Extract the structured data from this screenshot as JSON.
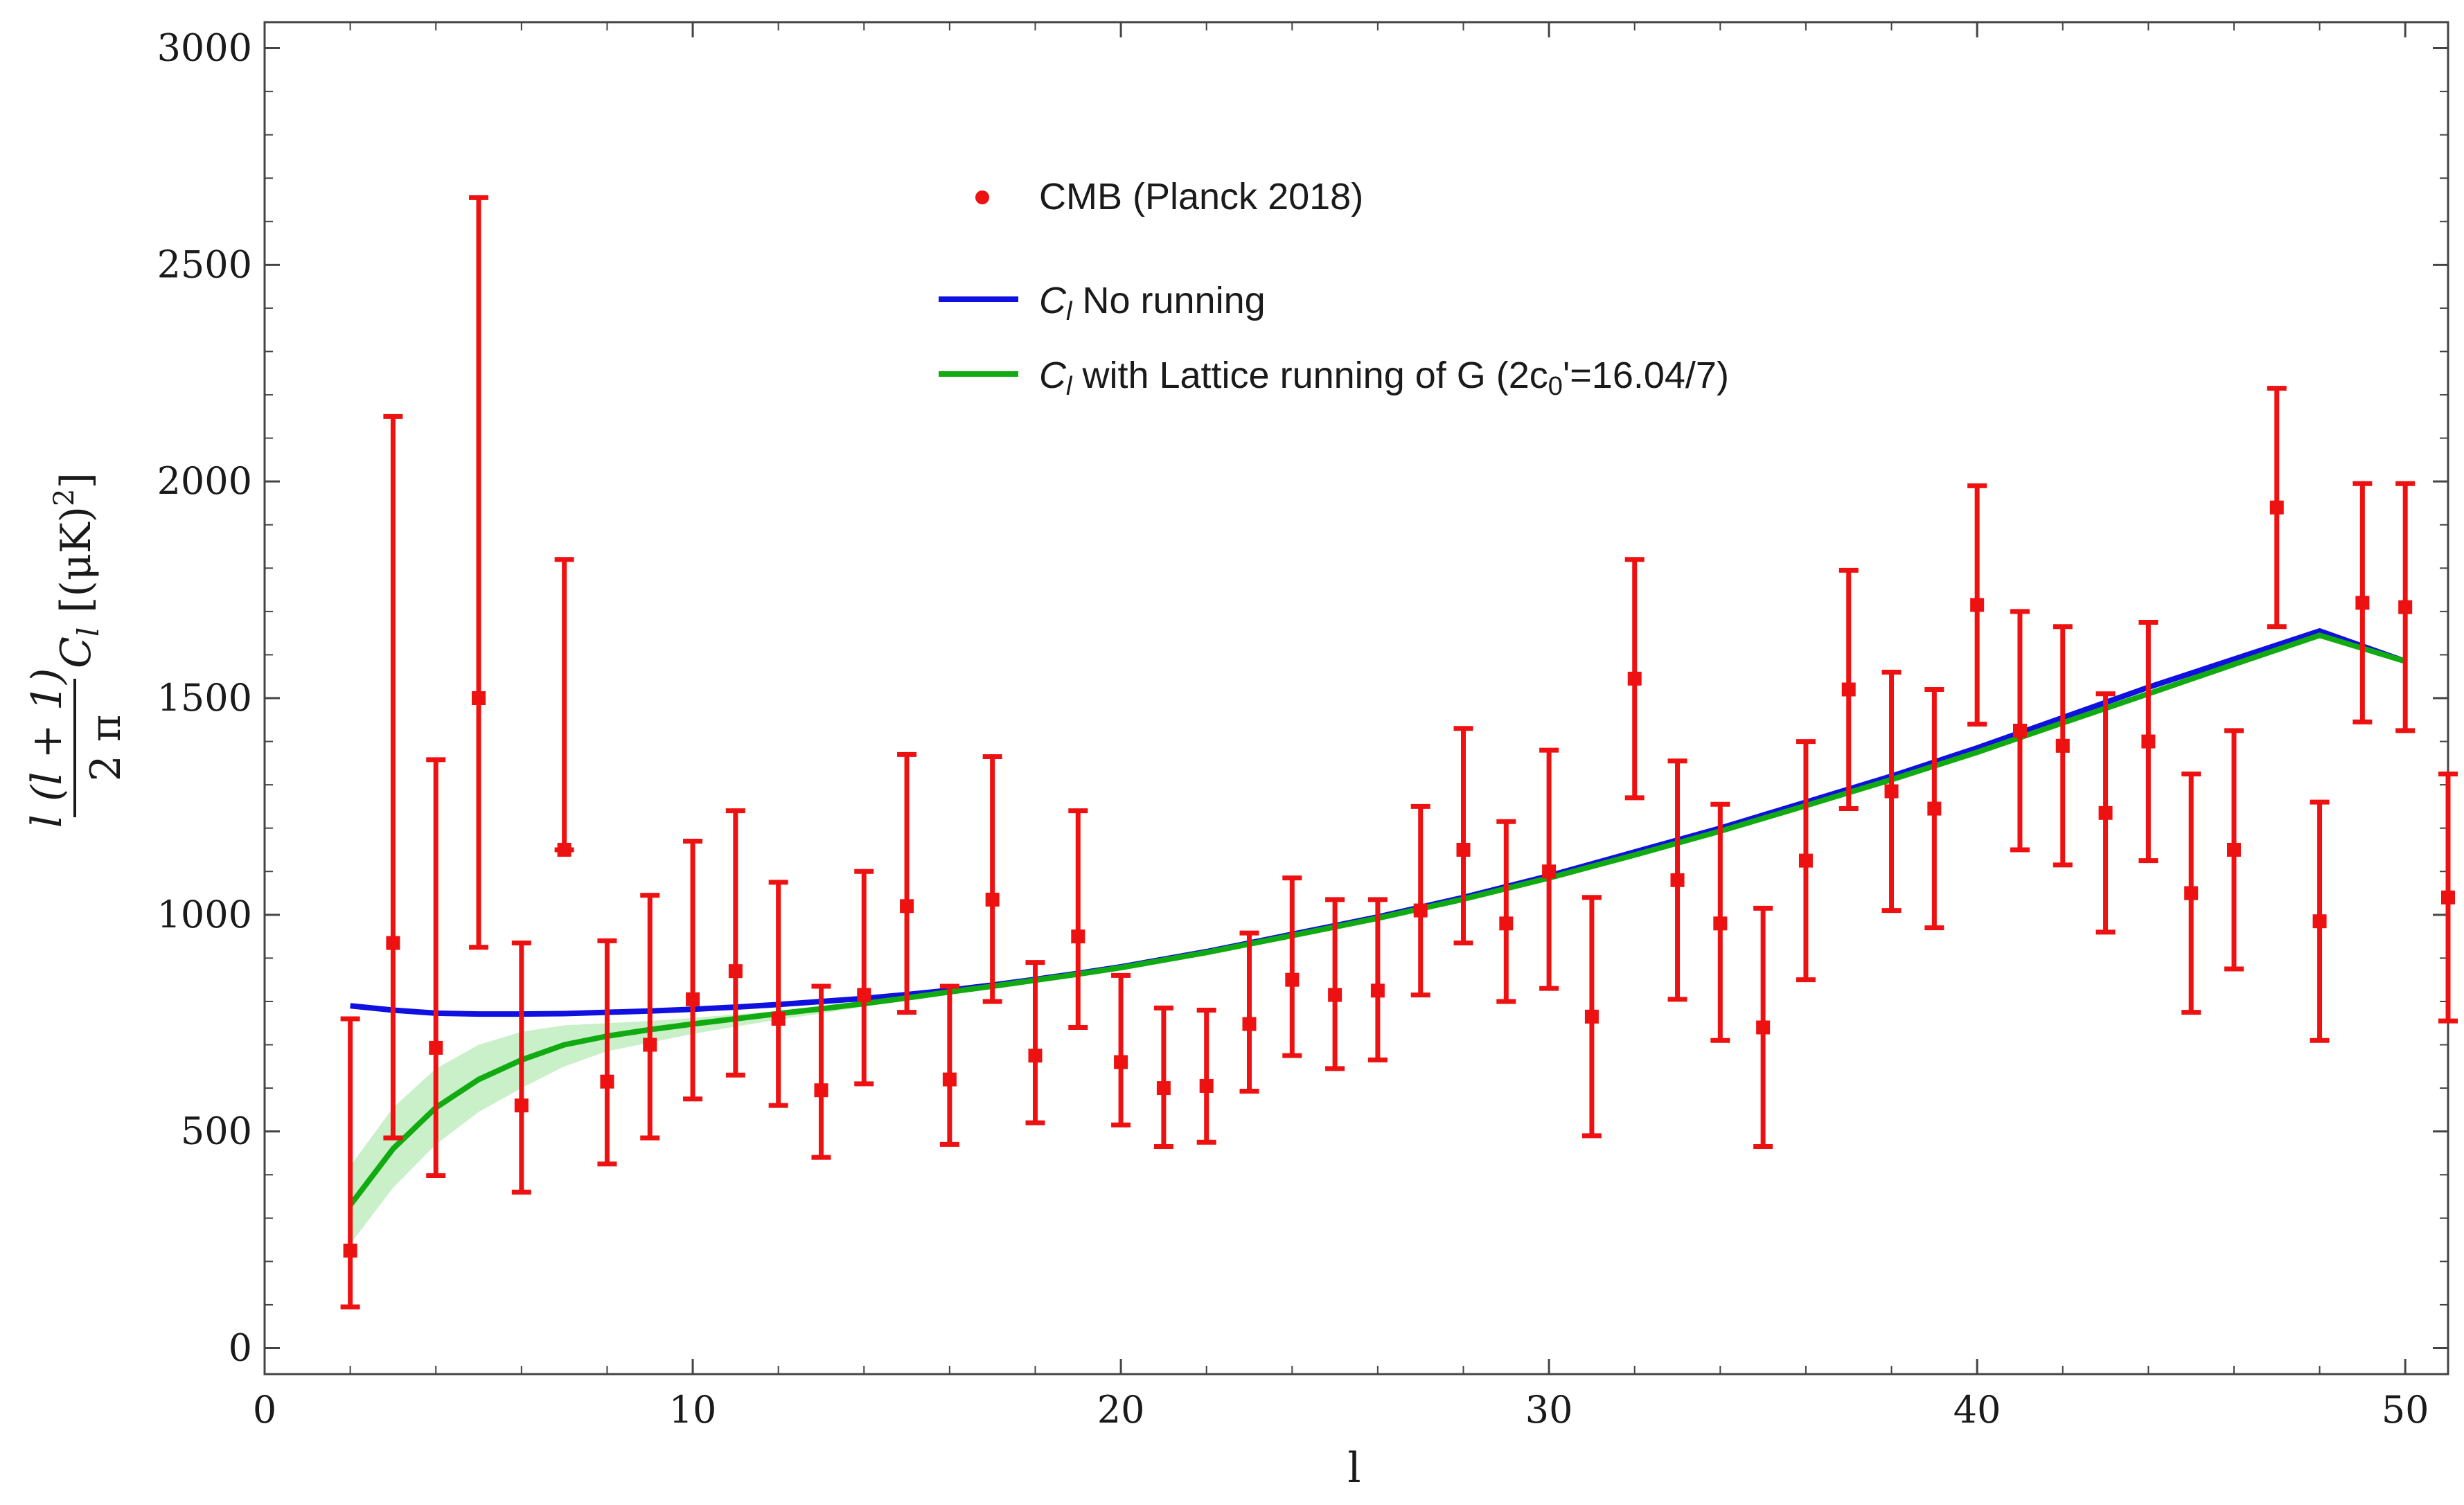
{
  "chart_data": {
    "type": "scatter",
    "title": "",
    "xlabel": "l",
    "ylabel": "l(l+1)/(2π) C_l [(μK)^2]",
    "ylabel_parts": {
      "numerator": "l (l + 1)",
      "denominator": "2 π",
      "cl": "C",
      "cl_sub": "l",
      "units": "[(μK)",
      "units_sup": "2",
      "units_close": "]"
    },
    "xlim": [
      0,
      51
    ],
    "ylim": [
      -60,
      3060
    ],
    "x_ticks": [
      0,
      10,
      20,
      30,
      40,
      50
    ],
    "y_ticks": [
      0,
      500,
      1000,
      1500,
      2000,
      2500,
      3000
    ],
    "x_tick_labels": [
      "0",
      "10",
      "20",
      "30",
      "40",
      "50"
    ],
    "y_tick_labels": [
      "0",
      "500",
      "1000",
      "1500",
      "2000",
      "2500",
      "3000"
    ],
    "legend": {
      "placement": "top-center",
      "entries": [
        {
          "kind": "marker",
          "label": "CMB (Planck 2018)",
          "color": "#ee1111"
        },
        {
          "kind": "line",
          "prefix": "C",
          "sub": "l",
          "label": " No running",
          "color": "#1010e0"
        },
        {
          "kind": "line",
          "prefix": "C",
          "sub": "l",
          "label": " with Lattice running of G (2c",
          "sub2": "0",
          "label2": "'=16.04/7)",
          "color": "#11aa11"
        }
      ]
    },
    "series": [
      {
        "name": "CMB (Planck 2018)",
        "type": "errorbar",
        "color": "#ee1111",
        "x": [
          2,
          3,
          4,
          5,
          6,
          7,
          8,
          9,
          10,
          11,
          12,
          13,
          14,
          15,
          16,
          17,
          18,
          19,
          20,
          21,
          22,
          23,
          24,
          25,
          26,
          27,
          28,
          29,
          30,
          31,
          32,
          33,
          34,
          35,
          36,
          37,
          38,
          39,
          40,
          41,
          42,
          43,
          44,
          45,
          46,
          47,
          48,
          49,
          50,
          51
        ],
        "y": [
          225,
          935,
          693,
          1500,
          560,
          1150,
          615,
          700,
          805,
          870,
          760,
          595,
          815,
          1020,
          620,
          1035,
          675,
          950,
          660,
          600,
          605,
          748,
          850,
          815,
          825,
          1010,
          1150,
          980,
          1100,
          765,
          1545,
          1080,
          980,
          740,
          1125,
          1520,
          1285,
          1245,
          1715,
          1425,
          1390,
          1235,
          1400,
          1050,
          1150,
          1940,
          985,
          1720,
          1710,
          1040
        ],
        "err_low": [
          130,
          450,
          295,
          575,
          200,
          0,
          190,
          215,
          230,
          240,
          200,
          155,
          205,
          245,
          150,
          235,
          155,
          210,
          145,
          135,
          130,
          155,
          175,
          170,
          160,
          195,
          215,
          180,
          270,
          275,
          275,
          275,
          270,
          275,
          275,
          275,
          275,
          275,
          275,
          275,
          275,
          275,
          275,
          275,
          275,
          275,
          275,
          275,
          285,
          285
        ],
        "err_high": [
          535,
          1215,
          665,
          1155,
          375,
          670,
          325,
          345,
          365,
          370,
          315,
          240,
          285,
          350,
          215,
          330,
          215,
          290,
          200,
          185,
          175,
          210,
          235,
          220,
          210,
          240,
          280,
          235,
          280,
          275,
          275,
          275,
          275,
          275,
          275,
          275,
          275,
          275,
          275,
          275,
          275,
          275,
          275,
          275,
          275,
          275,
          275,
          275,
          285,
          285
        ]
      },
      {
        "name": "C_l No running",
        "type": "line",
        "color": "#1010e0",
        "x": [
          2,
          3,
          4,
          5,
          6,
          7,
          8,
          9,
          10,
          11,
          12,
          13,
          14,
          15,
          16,
          17,
          18,
          19,
          20,
          22,
          24,
          26,
          28,
          30,
          32,
          34,
          36,
          38,
          40,
          42,
          44,
          46,
          48,
          50
        ],
        "y": [
          790,
          780,
          773,
          771,
          771,
          772,
          775,
          778,
          782,
          787,
          793,
          800,
          807,
          816,
          826,
          838,
          851,
          865,
          880,
          915,
          955,
          995,
          1040,
          1090,
          1145,
          1200,
          1260,
          1320,
          1385,
          1455,
          1525,
          1590,
          1655,
          1585
        ]
      },
      {
        "name": "C_l with Lattice running of G (2c0'=16.04/7)",
        "type": "line",
        "color": "#11aa11",
        "x": [
          2,
          3,
          4,
          5,
          6,
          7,
          8,
          9,
          10,
          11,
          12,
          13,
          14,
          15,
          16,
          17,
          18,
          19,
          20,
          22,
          24,
          26,
          28,
          30,
          32,
          34,
          36,
          38,
          40,
          42,
          44,
          46,
          48,
          50
        ],
        "y": [
          330,
          460,
          555,
          620,
          665,
          700,
          720,
          735,
          748,
          760,
          772,
          783,
          795,
          808,
          822,
          835,
          849,
          863,
          878,
          913,
          952,
          992,
          1036,
          1085,
          1138,
          1193,
          1252,
          1312,
          1375,
          1443,
          1510,
          1578,
          1645,
          1585
        ]
      },
      {
        "name": "Lattice running uncertainty band",
        "type": "band",
        "color": "#c9f0c9",
        "x": [
          2,
          3,
          4,
          5,
          6,
          7,
          8,
          9,
          10,
          11,
          12,
          13,
          14
        ],
        "y_low": [
          240,
          370,
          470,
          545,
          600,
          650,
          685,
          705,
          725,
          742,
          758,
          772,
          788
        ],
        "y_high": [
          420,
          555,
          645,
          700,
          730,
          745,
          750,
          755,
          762,
          770,
          778,
          788,
          800
        ]
      }
    ]
  }
}
